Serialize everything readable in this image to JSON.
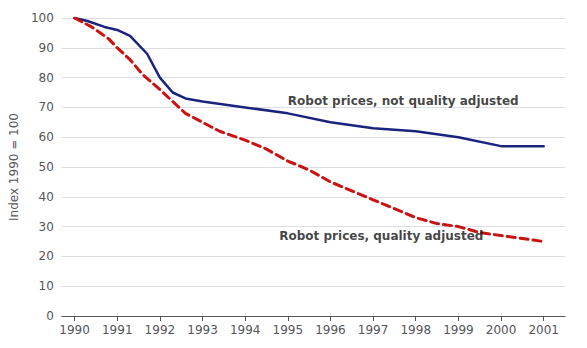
{
  "chart_data": {
    "type": "line",
    "ylabel": "Index 1990 = 100",
    "series": [
      {
        "type": "line",
        "line_style": "solid",
        "color": "#1a237e",
        "x": [
          1990,
          1990.3,
          1990.7,
          1991,
          1991.3,
          1991.7,
          1992,
          1992.3,
          1992.6,
          1993,
          1994,
          1995,
          1996,
          1997,
          1998,
          1999,
          2000,
          2001
        ],
        "values": [
          100,
          99,
          97,
          96,
          94,
          88,
          80,
          75,
          73,
          72,
          70,
          68,
          65,
          63,
          62,
          60,
          57,
          57
        ]
      },
      {
        "type": "line",
        "line_style": "dashed",
        "color": "#cc1111",
        "x": [
          1990,
          1990.4,
          1990.8,
          1991,
          1991.3,
          1991.6,
          1992,
          1992.3,
          1992.6,
          1993,
          1993.4,
          1994,
          1994.5,
          1995,
          1995.5,
          1996,
          1996.5,
          1997,
          1997.5,
          1998,
          1998.5,
          1999,
          1999.5,
          2000,
          2000.5,
          2001
        ],
        "values": [
          100,
          97,
          93,
          90,
          86,
          81,
          76,
          72,
          68,
          65,
          62,
          59,
          56,
          52,
          49,
          45,
          42,
          39,
          36,
          33,
          31,
          30,
          28,
          27,
          26,
          25
        ]
      }
    ],
    "annotations": [
      {
        "text": "Robot prices, not quality adjusted",
        "x": 1995.0,
        "y": 72,
        "color": "#111111"
      },
      {
        "text": "Robot prices, quality adjusted",
        "x": 1994.8,
        "y": 27,
        "color": "#111111"
      }
    ],
    "xlim": [
      1989.7,
      2001.5
    ],
    "xticks": [
      1990,
      1991,
      1992,
      1993,
      1994,
      1995,
      1996,
      1997,
      1998,
      1999,
      2000,
      2001
    ],
    "ylim": [
      0,
      100
    ],
    "yticks": [
      0,
      10,
      20,
      30,
      40,
      50,
      60,
      70,
      80,
      90,
      100
    ],
    "grid": true
  }
}
